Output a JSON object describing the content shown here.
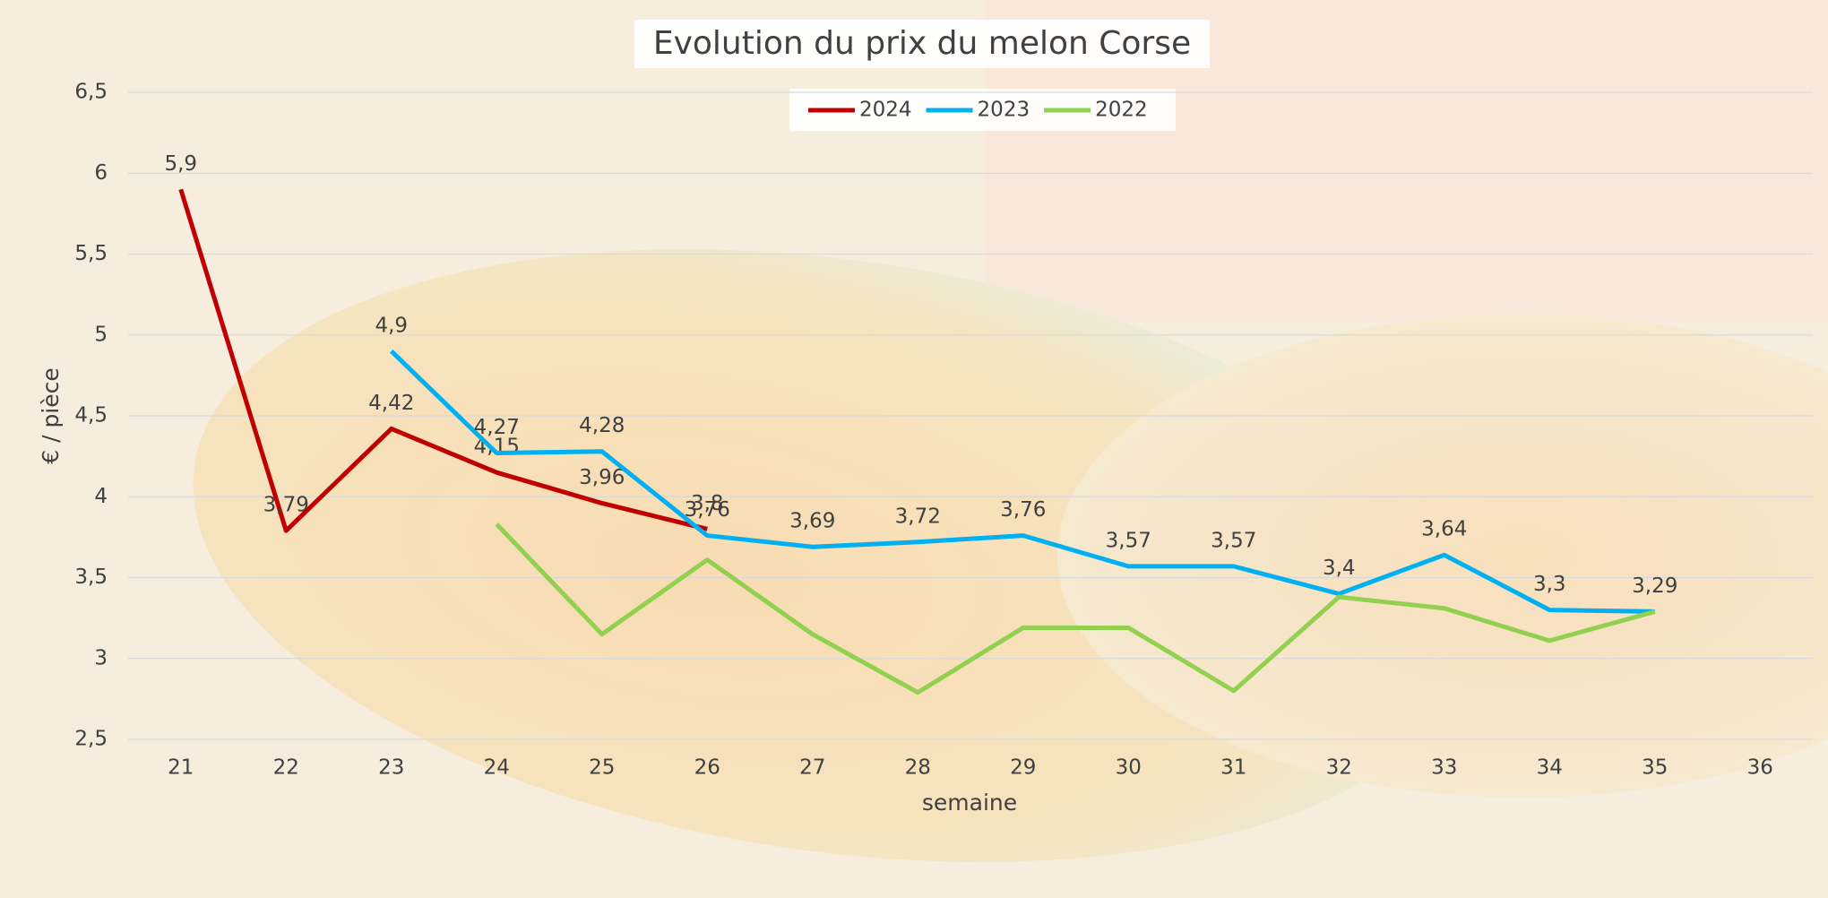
{
  "chart_data": {
    "type": "line",
    "title": "Evolution du prix du melon Corse",
    "x_label": "semaine",
    "y_label": "€ / pièce",
    "categories": [
      "21",
      "22",
      "23",
      "24",
      "25",
      "26",
      "27",
      "28",
      "29",
      "30",
      "31",
      "32",
      "33",
      "34",
      "35",
      "36"
    ],
    "series": [
      {
        "name": "2024",
        "color": "#c00000",
        "values": [
          5.9,
          3.79,
          4.42,
          4.15,
          3.96,
          3.8,
          null,
          null,
          null,
          null,
          null,
          null,
          null,
          null,
          null,
          null
        ],
        "value_labels": [
          "5,9",
          "3,79",
          "4,42",
          "4,15",
          "3,96",
          "3,8",
          null,
          null,
          null,
          null,
          null,
          null,
          null,
          null,
          null,
          null
        ]
      },
      {
        "name": "2023",
        "color": "#00b0f0",
        "values": [
          null,
          null,
          4.9,
          4.27,
          4.28,
          3.76,
          3.69,
          3.72,
          3.76,
          3.57,
          3.57,
          3.4,
          3.64,
          3.3,
          3.29,
          null
        ],
        "value_labels": [
          null,
          null,
          "4,9",
          "4,27",
          "4,28",
          "3,76",
          "3,69",
          "3,72",
          "3,76",
          "3,57",
          "3,57",
          "3,4",
          "3,64",
          "3,3",
          "3,29",
          null
        ]
      },
      {
        "name": "2022",
        "color": "#92d050",
        "values": [
          null,
          null,
          null,
          3.83,
          3.15,
          3.61,
          3.15,
          2.79,
          3.19,
          3.19,
          2.8,
          3.38,
          3.31,
          3.11,
          3.29,
          null
        ]
      }
    ],
    "ylim": [
      2.5,
      6.5
    ],
    "yticks": [
      {
        "value": 2.5,
        "label": "2,5"
      },
      3,
      {
        "value": 3.5,
        "label": "3,5"
      },
      4,
      {
        "value": 4.5,
        "label": "4,5"
      },
      5,
      {
        "value": 5.5,
        "label": "5,5"
      },
      6,
      {
        "value": 6.5,
        "label": "6,5"
      }
    ],
    "grid": true,
    "legend": "top"
  }
}
